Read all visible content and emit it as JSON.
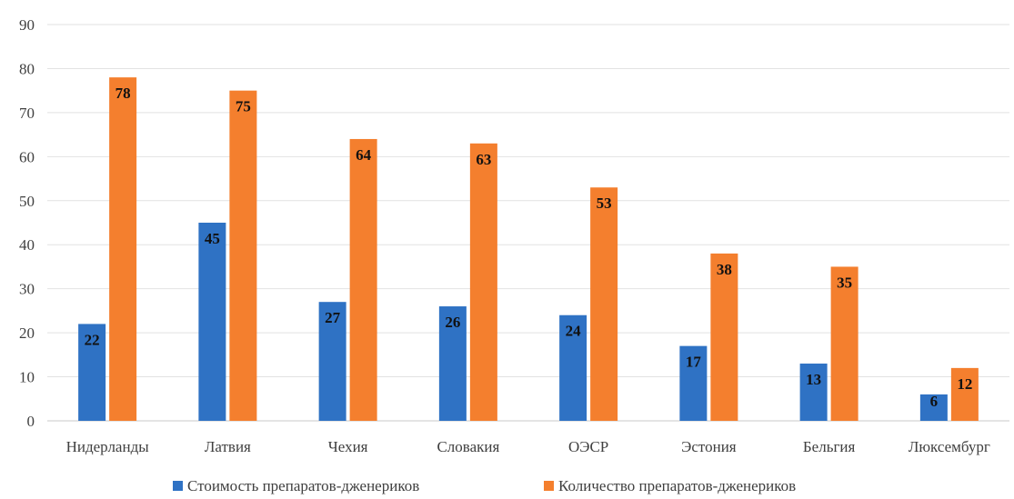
{
  "chart_data": {
    "type": "bar",
    "title": "",
    "xlabel": "",
    "ylabel": "",
    "ylim": [
      0,
      90
    ],
    "yticks": [
      0,
      10,
      20,
      30,
      40,
      50,
      60,
      70,
      80,
      90
    ],
    "grid": true,
    "legend_position": "bottom",
    "categories": [
      "Нидерланды",
      "Латвия",
      "Чехия",
      "Словакия",
      "ОЭСР",
      "Эстония",
      "Бельгия",
      "Люксембург"
    ],
    "series": [
      {
        "name": "Стоимость препаратов-дженериков",
        "color": "#2F72C4",
        "values": [
          22,
          45,
          27,
          26,
          24,
          17,
          13,
          6
        ]
      },
      {
        "name": "Количество препаратов-дженериков",
        "color": "#F47F2E",
        "values": [
          78,
          75,
          64,
          63,
          53,
          38,
          35,
          12
        ]
      }
    ]
  }
}
